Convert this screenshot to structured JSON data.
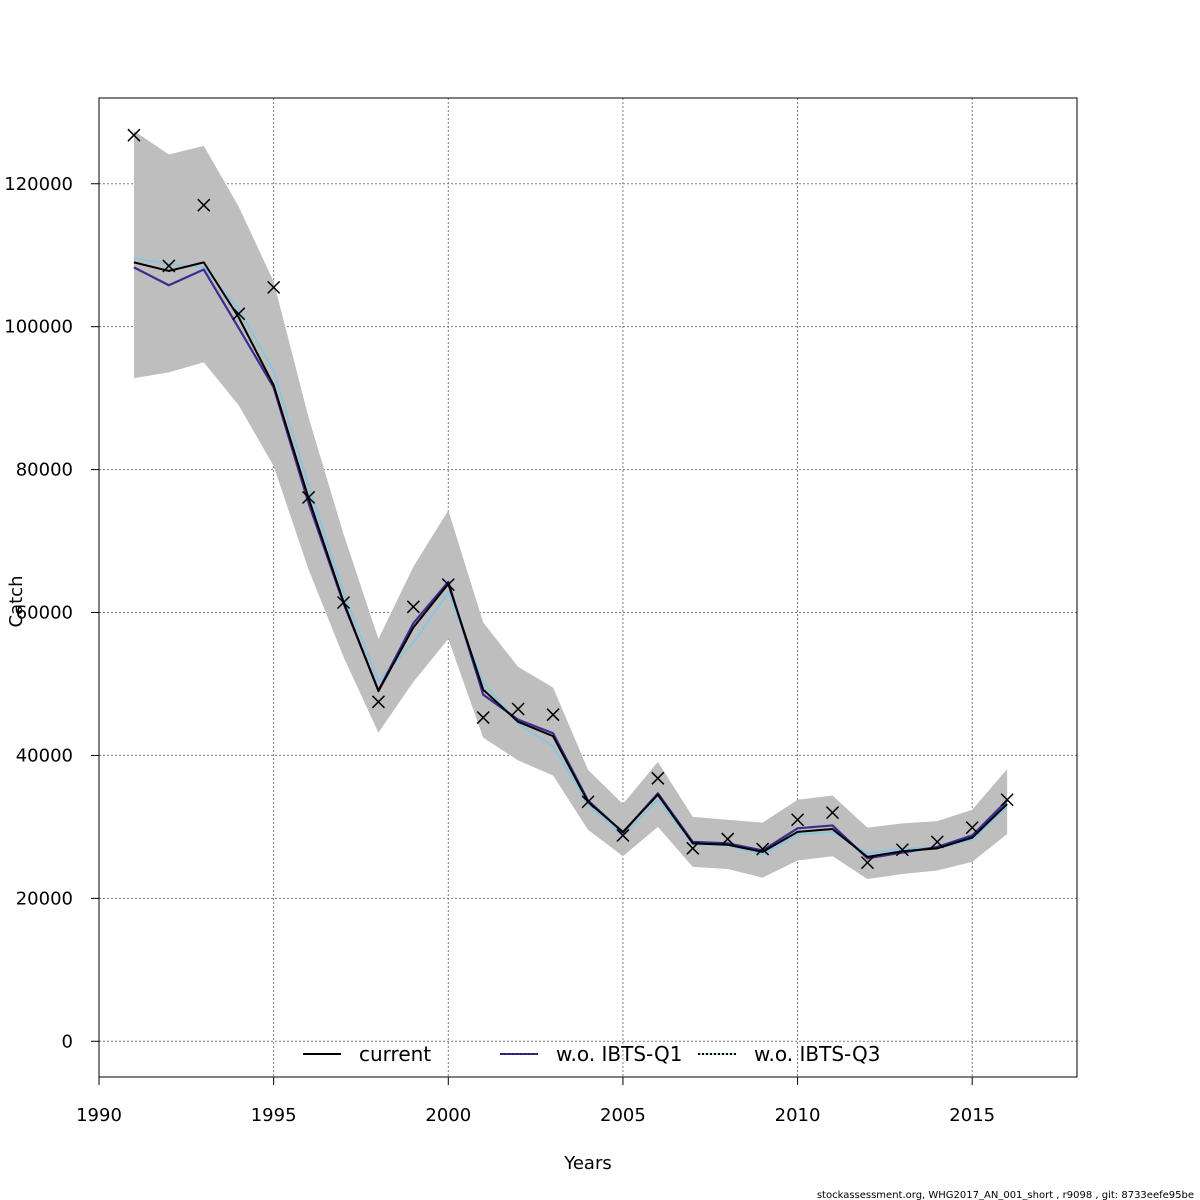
{
  "chart_data": {
    "type": "line",
    "xlabel": "Years",
    "ylabel": "Catch",
    "xlim": [
      1990,
      2018
    ],
    "ylim": [
      -5000,
      132000
    ],
    "x_ticks": [
      1990,
      1995,
      2000,
      2005,
      2010,
      2015
    ],
    "y_ticks": [
      0,
      20000,
      40000,
      60000,
      80000,
      100000,
      120000
    ],
    "x_tick_labels": [
      "1990",
      "1995",
      "2000",
      "2005",
      "2010",
      "2015"
    ],
    "y_tick_labels": [
      "0",
      "20000",
      "40000",
      "60000",
      "80000",
      "100000",
      "120000"
    ],
    "grid": true,
    "legend_position": "bottom",
    "years": [
      1991,
      1992,
      1993,
      1994,
      1995,
      1996,
      1997,
      1998,
      1999,
      2000,
      2001,
      2002,
      2003,
      2004,
      2005,
      2006,
      2007,
      2008,
      2009,
      2010,
      2011,
      2012,
      2013,
      2014,
      2015,
      2016
    ],
    "confidence_band": {
      "lower": [
        92800,
        93600,
        95000,
        89000,
        80500,
        66000,
        53800,
        43200,
        50300,
        56300,
        42500,
        39300,
        37200,
        29600,
        25900,
        30000,
        24400,
        24100,
        22900,
        25300,
        25900,
        22700,
        23400,
        23900,
        25100,
        29000
      ],
      "upper": [
        127400,
        124100,
        125300,
        116800,
        106300,
        87300,
        71000,
        56300,
        66400,
        74300,
        58600,
        52400,
        49500,
        38000,
        33200,
        39100,
        31400,
        31000,
        30600,
        33800,
        34400,
        29900,
        30500,
        30800,
        32400,
        38100
      ]
    },
    "series": [
      {
        "name": "current",
        "color": "#000000",
        "dash": "solid",
        "values": [
          109000,
          107800,
          109000,
          101300,
          91800,
          76000,
          61500,
          49000,
          57900,
          64000,
          49200,
          44700,
          42700,
          33500,
          29300,
          34500,
          27700,
          27500,
          26500,
          29300,
          29700,
          25800,
          26600,
          27000,
          28500,
          33200
        ]
      },
      {
        "name": "w.o. IBTS-Q1",
        "color": "#3d2b8f",
        "dash": "solid",
        "values": [
          108300,
          105800,
          108000,
          99800,
          91500,
          75300,
          61300,
          49100,
          58500,
          64300,
          48500,
          45000,
          43100,
          33700,
          29200,
          34700,
          27900,
          27700,
          26700,
          29800,
          30200,
          25600,
          26400,
          27200,
          28800,
          33700
        ]
      },
      {
        "name": "w.o. IBTS-Q3",
        "color": "#7ec8e3",
        "dash": "dotted",
        "values": [
          109600,
          108800,
          108300,
          102500,
          93800,
          77800,
          62800,
          50400,
          55800,
          62800,
          50200,
          44400,
          41300,
          33100,
          28700,
          33800,
          27600,
          27400,
          26100,
          28900,
          29300,
          26300,
          27000,
          27000,
          28200,
          32700
        ]
      }
    ],
    "observations": {
      "marker": "x",
      "values": [
        126800,
        108500,
        117000,
        101800,
        105500,
        76100,
        61400,
        47500,
        60800,
        63900,
        45300,
        46500,
        45700,
        33500,
        28800,
        36800,
        27000,
        28300,
        26900,
        31000,
        32000,
        25000,
        26800,
        27900,
        29900,
        33800
      ]
    }
  },
  "footer_note": "stockassessment.org, WHG2017_AN_001_short , r9098 , git: 8733eefe95be"
}
